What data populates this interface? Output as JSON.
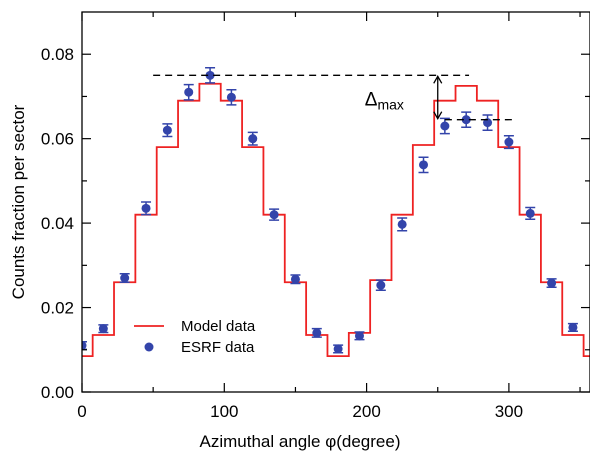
{
  "chart_data": {
    "type": "line",
    "xlabel": "Azimuthal angle φ(degree)",
    "ylabel": "Counts fraction per sector",
    "xlim": [
      0,
      357
    ],
    "ylim": [
      0,
      0.09
    ],
    "x_ticks": [
      0,
      100,
      200,
      300
    ],
    "x_tick_labels": [
      "0",
      "100",
      "200",
      "300"
    ],
    "y_ticks": [
      0,
      0.02,
      0.04,
      0.06,
      0.08
    ],
    "y_tick_labels": [
      "0.00",
      "0.02",
      "0.04",
      "0.06",
      "0.08"
    ],
    "grid": false,
    "legend_position": "bottom-left",
    "series": [
      {
        "name": "Model data",
        "kind": "step",
        "color": "#ee2222",
        "edges": [
          0,
          7.5,
          22.5,
          37.5,
          52.5,
          67.5,
          82.5,
          97.5,
          112.5,
          127.5,
          142.5,
          157.5,
          172.5,
          187.5,
          202.5,
          217.5,
          232.5,
          247.5,
          262.5,
          277.5,
          292.5,
          307.5,
          322.5,
          337.5,
          352.5,
          357
        ],
        "values": [
          0.0085,
          0.0135,
          0.026,
          0.042,
          0.058,
          0.069,
          0.073,
          0.069,
          0.058,
          0.042,
          0.026,
          0.0135,
          0.0085,
          0.014,
          0.0265,
          0.042,
          0.0585,
          0.069,
          0.0725,
          0.069,
          0.058,
          0.042,
          0.026,
          0.0135,
          0.0085
        ]
      },
      {
        "name": "ESRF data",
        "kind": "points",
        "color": "#3344aa",
        "x": [
          0,
          15,
          30,
          45,
          60,
          75,
          90,
          105,
          120,
          135,
          150,
          165,
          180,
          195,
          210,
          225,
          240,
          255,
          270,
          285,
          300,
          315,
          330,
          345
        ],
        "y": [
          0.011,
          0.015,
          0.027,
          0.0435,
          0.062,
          0.071,
          0.075,
          0.0698,
          0.06,
          0.042,
          0.0267,
          0.014,
          0.0102,
          0.0133,
          0.0253,
          0.0397,
          0.0538,
          0.063,
          0.0645,
          0.0638,
          0.0592,
          0.0423,
          0.0258,
          0.0153
        ],
        "error": [
          0.0009,
          0.0009,
          0.001,
          0.0015,
          0.0015,
          0.0018,
          0.0018,
          0.0018,
          0.0015,
          0.0013,
          0.001,
          0.001,
          0.0009,
          0.0009,
          0.0012,
          0.0015,
          0.0018,
          0.0018,
          0.0018,
          0.0018,
          0.0015,
          0.0014,
          0.001,
          0.0009
        ]
      }
    ],
    "annotation": {
      "symbol": "Δ",
      "subscript": "max",
      "upper_level": 0.075,
      "lower_level": 0.0645,
      "upper_x_range": [
        50,
        272
      ],
      "lower_x_range": [
        255,
        305
      ],
      "arrow_x": 250
    }
  }
}
